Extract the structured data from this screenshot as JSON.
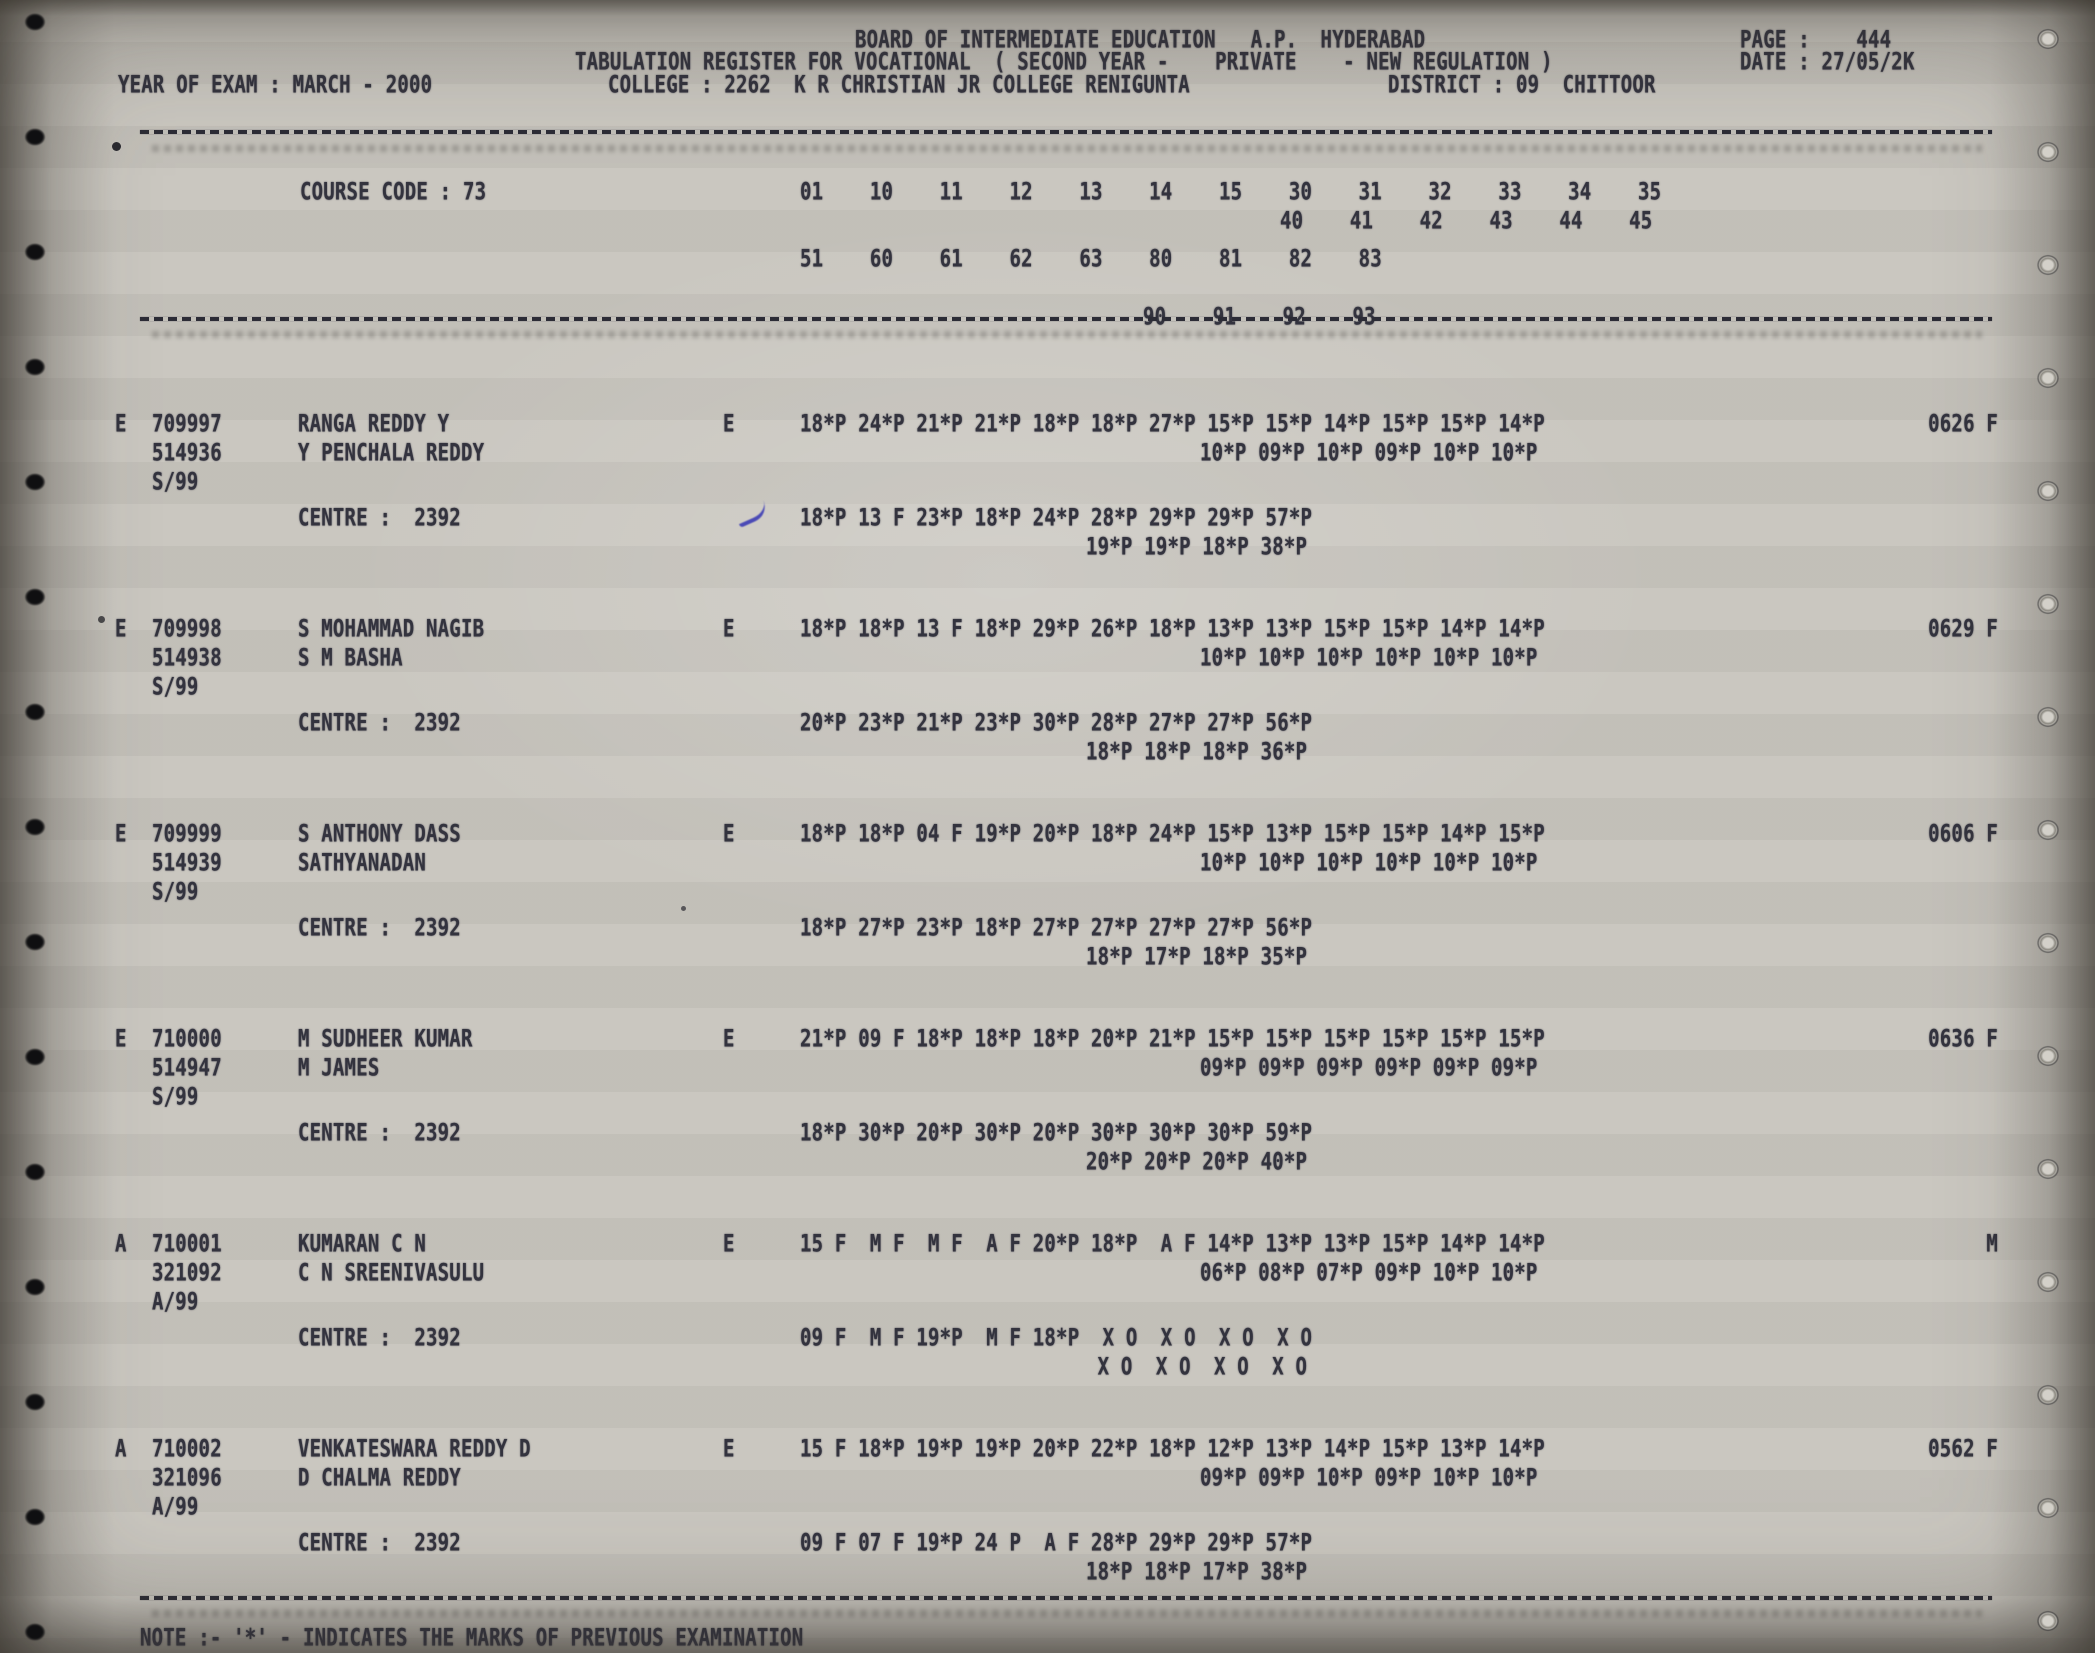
{
  "header": {
    "board_line": "BOARD OF INTERMEDIATE EDUCATION   A.P.  HYDERABAD",
    "page_label": "PAGE :    444",
    "register_line": "TABULATION REGISTER FOR VOCATIONAL  ( SECOND YEAR -    PRIVATE    - NEW REGULATION )",
    "date_label": "DATE : 27/05/2K",
    "year_of_exam": "YEAR OF EXAM : MARCH - 2000",
    "college": "COLLEGE : 2262  K R CHRISTIAN JR COLLEGE RENIGUNTA",
    "district": "DISTRICT : 09  CHITTOOR"
  },
  "course": {
    "label": "COURSE CODE : 73",
    "codes_row1": "01    10    11    12    13    14    15    30    31    32    33    34    35",
    "codes_row2": "40    41    42    43    44    45",
    "codes_row3": "51    60    61    62    63    80    81    82    83",
    "codes_row4": "90    91    92    93"
  },
  "records": [
    {
      "status": "E",
      "regno": "709997",
      "name": "RANGA REDDY Y",
      "roll2": "514936",
      "father": "Y PENCHALA REDDY",
      "appear": "S/99",
      "medium": "E",
      "marks1": "18*P 24*P 21*P 21*P 18*P 18*P 27*P 15*P 15*P 14*P 15*P 15*P 14*P",
      "marks2": "10*P 09*P 10*P 09*P 10*P 10*P",
      "result": "0626 F",
      "centre_label": "CENTRE :  2392",
      "centre1": "18*P 13 F 23*P 18*P 24*P 28*P 29*P 29*P 57*P",
      "centre2": "19*P 19*P 18*P 38*P"
    },
    {
      "status": "E",
      "regno": "709998",
      "name": "S MOHAMMAD NAGIB",
      "roll2": "514938",
      "father": "S M BASHA",
      "appear": "S/99",
      "medium": "E",
      "marks1": "18*P 18*P 13 F 18*P 29*P 26*P 18*P 13*P 13*P 15*P 15*P 14*P 14*P",
      "marks2": "10*P 10*P 10*P 10*P 10*P 10*P",
      "result": "0629 F",
      "centre_label": "CENTRE :  2392",
      "centre1": "20*P 23*P 21*P 23*P 30*P 28*P 27*P 27*P 56*P",
      "centre2": "18*P 18*P 18*P 36*P"
    },
    {
      "status": "E",
      "regno": "709999",
      "name": "S ANTHONY DASS",
      "roll2": "514939",
      "father": "SATHYANADAN",
      "appear": "S/99",
      "medium": "E",
      "marks1": "18*P 18*P 04 F 19*P 20*P 18*P 24*P 15*P 13*P 15*P 15*P 14*P 15*P",
      "marks2": "10*P 10*P 10*P 10*P 10*P 10*P",
      "result": "0606 F",
      "centre_label": "CENTRE :  2392",
      "centre1": "18*P 27*P 23*P 18*P 27*P 27*P 27*P 27*P 56*P",
      "centre2": "18*P 17*P 18*P 35*P"
    },
    {
      "status": "E",
      "regno": "710000",
      "name": "M SUDHEER KUMAR",
      "roll2": "514947",
      "father": "M JAMES",
      "appear": "S/99",
      "medium": "E",
      "marks1": "21*P 09 F 18*P 18*P 18*P 20*P 21*P 15*P 15*P 15*P 15*P 15*P 15*P",
      "marks2": "09*P 09*P 09*P 09*P 09*P 09*P",
      "result": "0636 F",
      "centre_label": "CENTRE :  2392",
      "centre1": "18*P 30*P 20*P 30*P 20*P 30*P 30*P 30*P 59*P",
      "centre2": "20*P 20*P 20*P 40*P"
    },
    {
      "status": "A",
      "regno": "710001",
      "name": "KUMARAN C N",
      "roll2": "321092",
      "father": "C N SREENIVASULU",
      "appear": "A/99",
      "medium": "E",
      "marks1": "15 F  M F  M F  A F 20*P 18*P  A F 14*P 13*P 13*P 15*P 14*P 14*P",
      "marks2": "06*P 08*P 07*P 09*P 10*P 10*P",
      "result": "M",
      "centre_label": "CENTRE :  2392",
      "centre1": "09 F  M F 19*P  M F 18*P  X O  X O  X O  X O",
      "centre2": " X O  X O  X O  X O"
    },
    {
      "status": "A",
      "regno": "710002",
      "name": "VENKATESWARA REDDY D",
      "roll2": "321096",
      "father": "D CHALMA REDDY",
      "appear": "A/99",
      "medium": "E",
      "marks1": "15 F 18*P 19*P 19*P 20*P 22*P 18*P 12*P 13*P 14*P 15*P 13*P 14*P",
      "marks2": "09*P 09*P 10*P 09*P 10*P 10*P",
      "result": "0562 F",
      "centre_label": "CENTRE :  2392",
      "centre1": "09 F 07 F 19*P 24 P  A F 28*P 29*P 29*P 57*P",
      "centre2": "18*P 18*P 17*P 38*P"
    }
  ],
  "footer": {
    "note": "NOTE :- '*' - INDICATES THE MARKS OF PREVIOUS EXAMINATION"
  }
}
